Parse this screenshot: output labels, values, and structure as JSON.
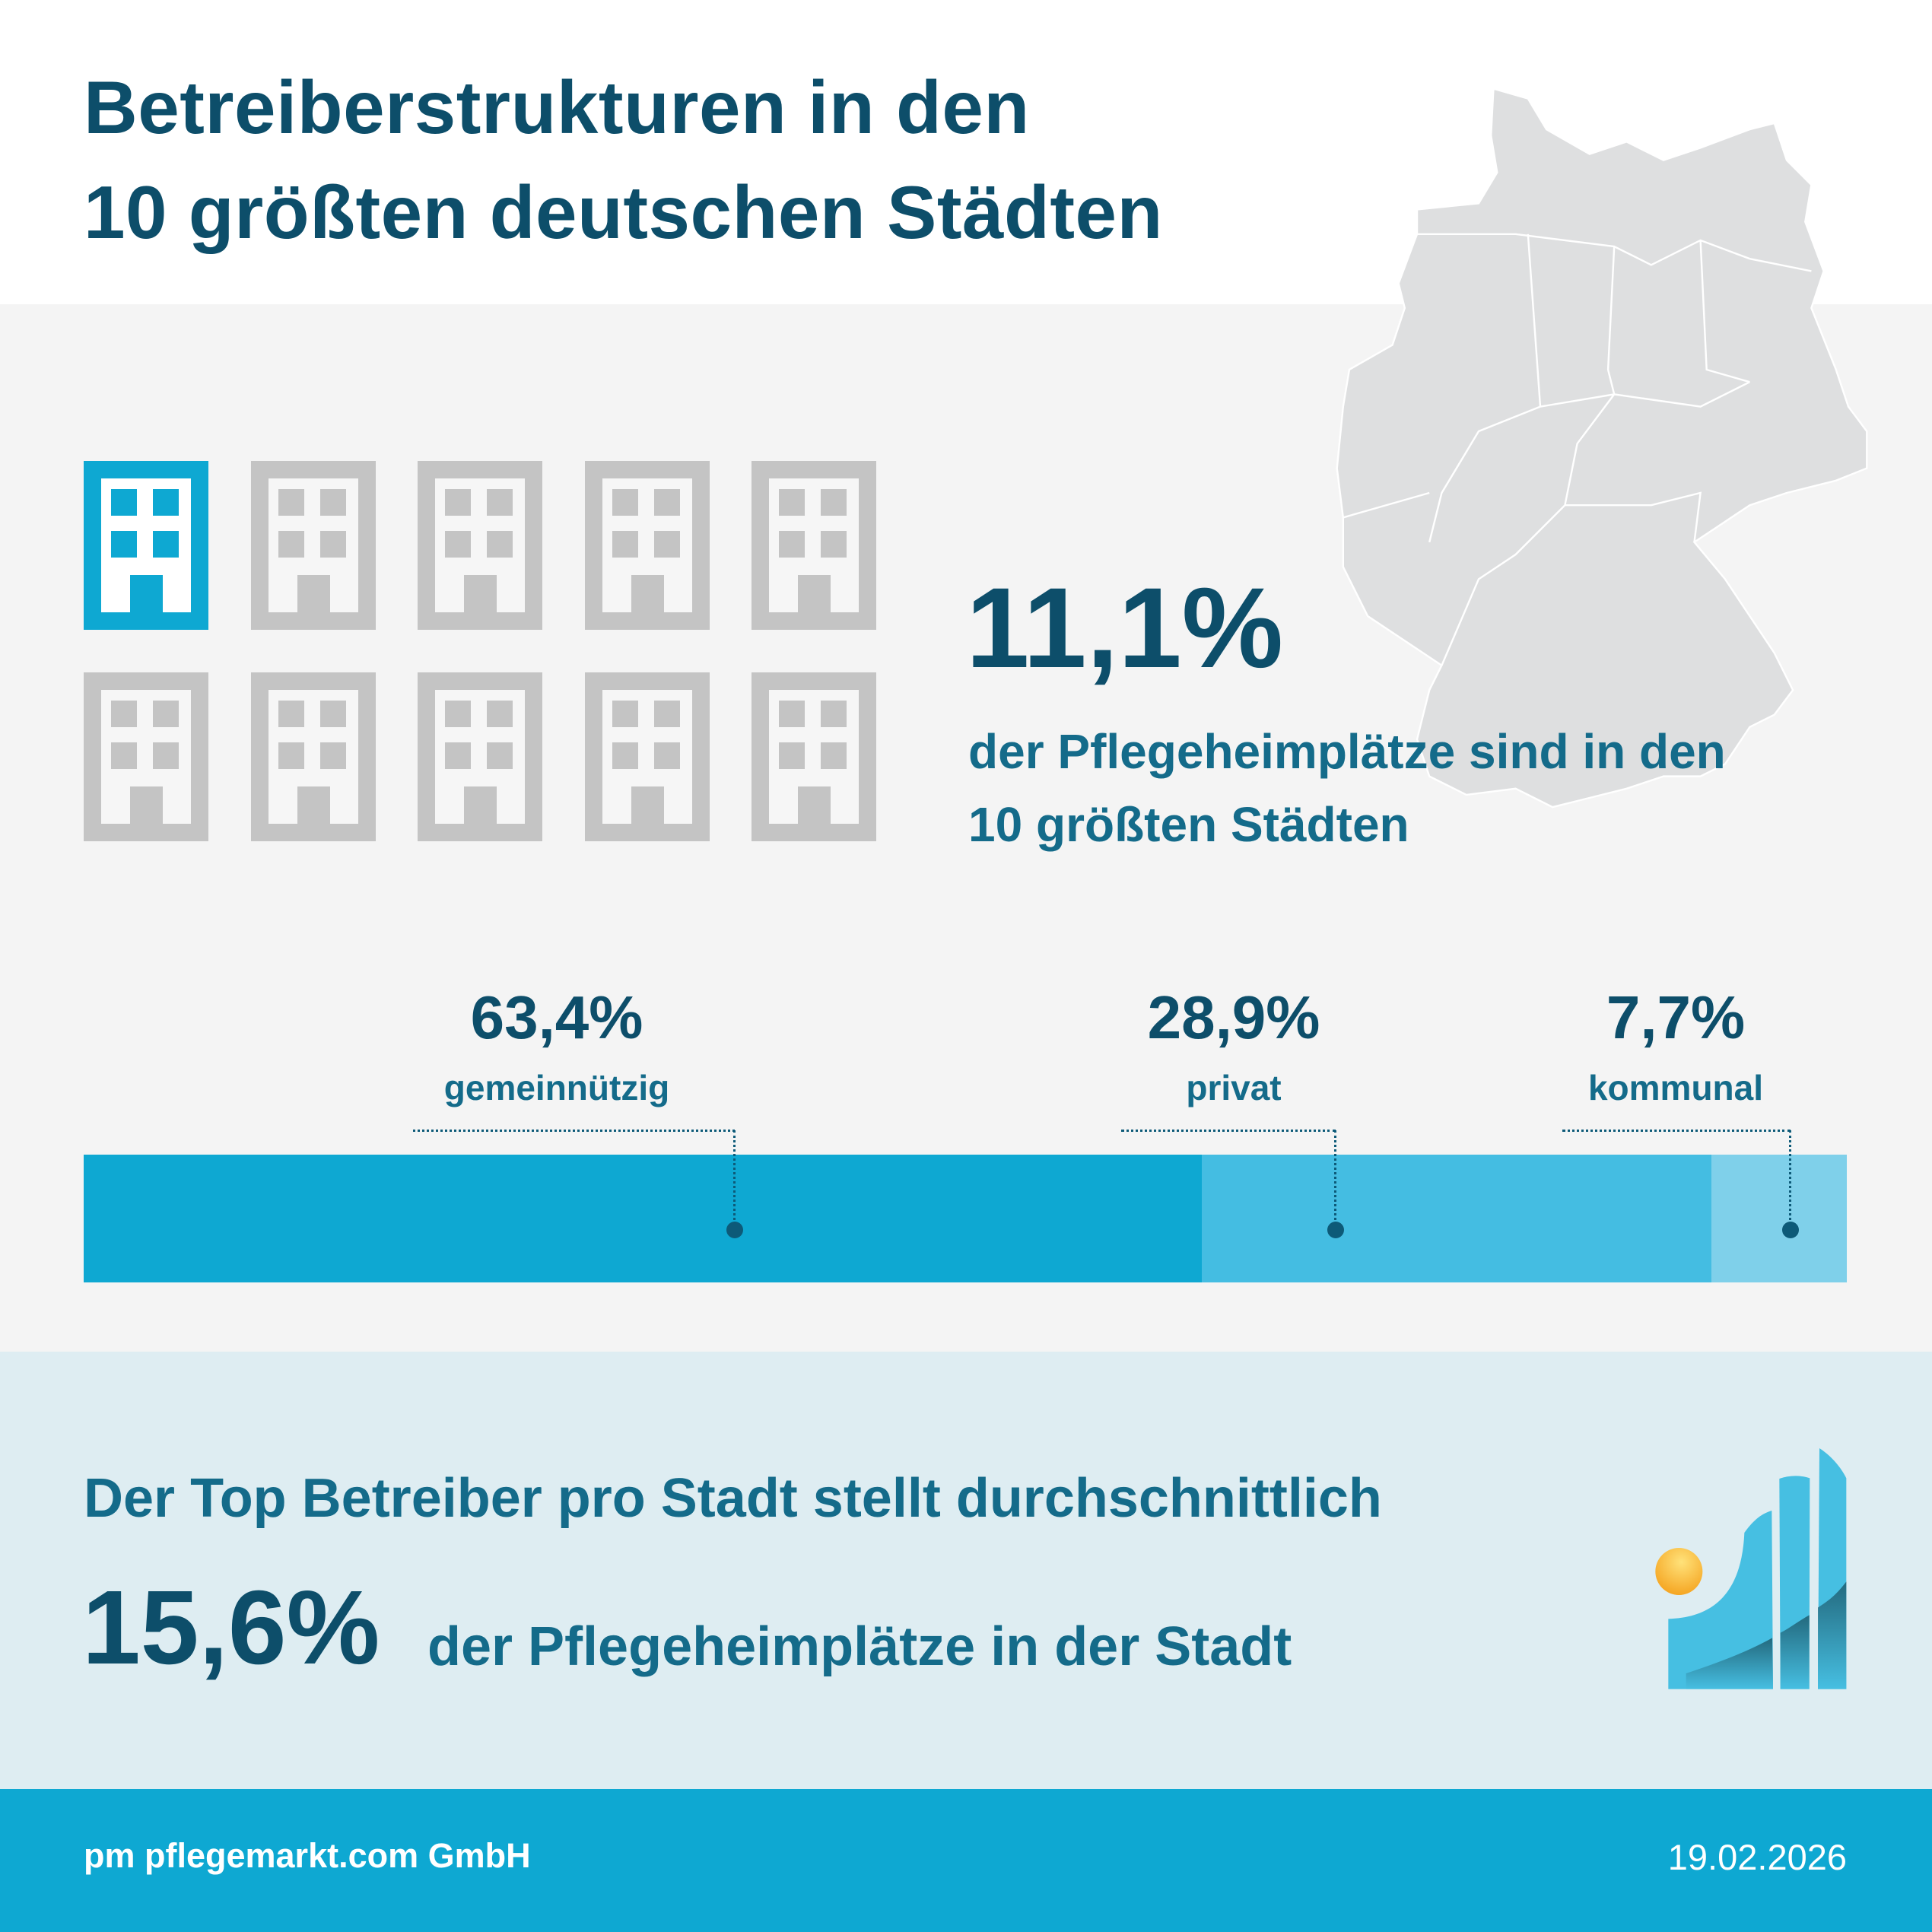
{
  "header": {
    "title_line1": "Betreiberstrukturen in den",
    "title_line2": "10 größten deutschen Städten"
  },
  "share": {
    "value": "11,1%",
    "fraction": 0.111,
    "text_line1": "der Pflegeheimplätze sind in den",
    "text_line2": "10 größten Städten",
    "highlighted_buildings": 1,
    "total_buildings": 10
  },
  "operators": [
    {
      "value": "63,4%",
      "percent": 63.4,
      "label": "gemeinnützig",
      "color": "#0ea8d2"
    },
    {
      "value": "28,9%",
      "percent": 28.9,
      "label": "privat",
      "color": "#44bde2"
    },
    {
      "value": "7,7%",
      "percent": 7.7,
      "label": "kommunal",
      "color": "#7fd0ea"
    }
  ],
  "top_operator": {
    "intro": "Der Top Betreiber pro Stadt stellt durchschnittlich",
    "value": "15,6%",
    "text": "der Pflegeheimplätze in der Stadt"
  },
  "footer": {
    "company": "pm pflegemarkt.com GmbH",
    "date": "19.02.2026"
  },
  "colors": {
    "title": "#0d4e6a",
    "accent": "#0ea8d2",
    "building_inactive": "#c4c4c4",
    "map": "#dedfe0"
  },
  "icons": {
    "building": "building-icon",
    "map": "germany-map",
    "logo": "pflegemarkt-logo"
  }
}
